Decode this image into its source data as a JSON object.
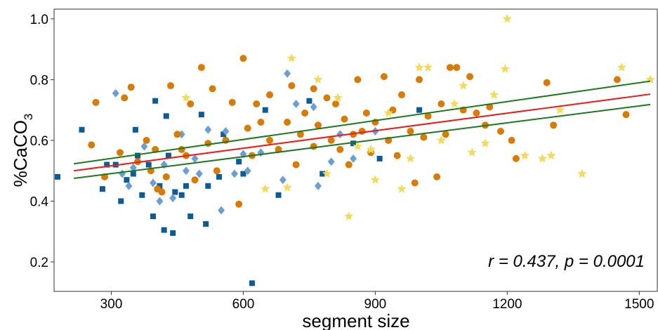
{
  "chart_data": {
    "type": "scatter",
    "x_label": "segment size",
    "y_label": "%CaCO",
    "y_label_sub": "3",
    "annotation": "r = 0.437, p = 0.0001",
    "xlim": [
      170,
      1541
    ],
    "ylim": [
      0.103,
      1.032
    ],
    "xticks": [
      300,
      600,
      900,
      1200,
      1500
    ],
    "yticks": [
      0.2,
      0.4,
      0.6,
      0.8,
      {
        "value": 1,
        "label": "1.0"
      }
    ],
    "series": [
      {
        "marker": "square",
        "color": "#0b5c94",
        "x": [
          178,
          233,
          280,
          290,
          310,
          322,
          335,
          350,
          355,
          360,
          370,
          385,
          395,
          400,
          410,
          420,
          425,
          430,
          440,
          445,
          460,
          480,
          505,
          515,
          520,
          545,
          590,
          600,
          620,
          650,
          680,
          750,
          780,
          850,
          910,
          1000,
          555,
          470
        ],
        "values": [
          0.48,
          0.635,
          0.44,
          0.52,
          0.52,
          0.4,
          0.47,
          0.49,
          0.635,
          0.55,
          0.42,
          0.52,
          0.35,
          0.73,
          0.45,
          0.305,
          0.68,
          0.55,
          0.295,
          0.43,
          0.42,
          0.35,
          0.685,
          0.325,
          0.45,
          0.48,
          0.53,
          0.49,
          0.13,
          0.7,
          0.42,
          0.73,
          0.49,
          0.59,
          0.54,
          0.7,
          0.62,
          0.45
        ]
      },
      {
        "marker": "diamond",
        "color": "#6b9fd1",
        "x": [
          310,
          325,
          350,
          375,
          395,
          410,
          440,
          460,
          470,
          490,
          520,
          550,
          560,
          580,
          600,
          640,
          660,
          690,
          700,
          720,
          760,
          770,
          800,
          820,
          850,
          900,
          340,
          420,
          500,
          610
        ],
        "values": [
          0.755,
          0.49,
          0.51,
          0.58,
          0.46,
          0.4,
          0.41,
          0.62,
          0.5,
          0.54,
          0.635,
          0.37,
          0.63,
          0.49,
          0.555,
          0.56,
          0.6,
          0.47,
          0.82,
          0.72,
          0.71,
          0.45,
          0.53,
          0.62,
          0.54,
          0.63,
          0.45,
          0.52,
          0.49,
          0.5
        ]
      },
      {
        "marker": "circle",
        "color": "#d77b05",
        "x": [
          255,
          265,
          285,
          320,
          330,
          345,
          360,
          380,
          390,
          400,
          405,
          415,
          425,
          435,
          450,
          460,
          470,
          480,
          490,
          505,
          520,
          530,
          540,
          560,
          575,
          590,
          600,
          610,
          620,
          630,
          640,
          660,
          680,
          700,
          710,
          720,
          730,
          740,
          760,
          770,
          790,
          800,
          810,
          820,
          830,
          840,
          850,
          860,
          870,
          880,
          890,
          900,
          920,
          930,
          940,
          960,
          980,
          990,
          1000,
          1020,
          1040,
          1050,
          1060,
          1070,
          1085,
          1100,
          1115,
          1130,
          1150,
          1160,
          1185,
          1210,
          1220,
          1290,
          1305,
          1450,
          1470,
          950,
          760,
          660,
          1010
        ],
        "values": [
          0.585,
          0.725,
          0.48,
          0.56,
          0.74,
          0.775,
          0.53,
          0.6,
          0.5,
          0.57,
          0.44,
          0.43,
          0.48,
          0.78,
          0.62,
          0.57,
          0.55,
          0.72,
          0.47,
          0.84,
          0.59,
          0.77,
          0.5,
          0.6,
          0.725,
          0.39,
          0.87,
          0.64,
          0.55,
          0.72,
          0.66,
          0.6,
          0.57,
          0.66,
          0.78,
          0.52,
          0.62,
          0.69,
          0.58,
          0.65,
          0.74,
          0.6,
          0.72,
          0.57,
          0.67,
          0.52,
          0.62,
          0.8,
          0.63,
          0.69,
          0.56,
          0.66,
          0.81,
          0.6,
          0.7,
          0.75,
          0.63,
          0.46,
          0.8,
          0.68,
          0.48,
          0.72,
          0.62,
          0.84,
          0.84,
          0.7,
          0.81,
          0.69,
          0.65,
          0.71,
          0.63,
          0.6,
          0.54,
          0.79,
          0.65,
          0.8,
          0.685,
          0.55,
          0.77,
          0.75,
          0.61
        ]
      },
      {
        "marker": "star",
        "color": "#f2db5c",
        "x": [
          470,
          700,
          710,
          770,
          790,
          815,
          840,
          860,
          890,
          900,
          930,
          960,
          980,
          1000,
          1020,
          1050,
          1080,
          1100,
          1120,
          1150,
          1170,
          1200,
          1195,
          1240,
          1280,
          1300,
          1320,
          1370,
          1460,
          1525,
          650
        ],
        "values": [
          0.74,
          0.445,
          0.87,
          0.8,
          0.49,
          0.74,
          0.35,
          0.58,
          0.57,
          0.47,
          0.69,
          0.44,
          0.54,
          0.84,
          0.84,
          0.6,
          0.72,
          0.78,
          0.56,
          0.59,
          0.75,
          1.0,
          0.835,
          0.55,
          0.54,
          0.55,
          0.7,
          0.49,
          0.84,
          0.8,
          0.44
        ]
      }
    ],
    "lines": [
      {
        "color": "#1a7a1a",
        "x": [
          215,
          1525
        ],
        "values": [
          0.523,
          0.795
        ]
      },
      {
        "color": "#1a7a1a",
        "x": [
          215,
          1525
        ],
        "values": [
          0.475,
          0.718
        ]
      },
      {
        "color": "#e8201c",
        "x": [
          215,
          1525
        ],
        "values": [
          0.5,
          0.752
        ]
      }
    ]
  }
}
